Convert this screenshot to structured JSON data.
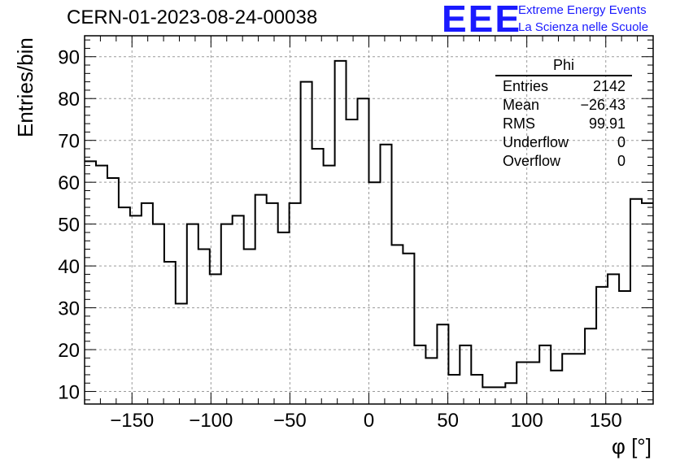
{
  "header": {
    "title": "CERN-01-2023-08-24-00038",
    "logo_text": "EEE",
    "logo_line1": "Extreme Energy Events",
    "logo_line2": "La Scienza nelle Scuole"
  },
  "stats": {
    "name": "Phi",
    "rows": [
      {
        "label": "Entries",
        "value": "2142"
      },
      {
        "label": "Mean",
        "value": "−26.43"
      },
      {
        "label": "RMS",
        "value": "99.91"
      },
      {
        "label": "Underflow",
        "value": "0"
      },
      {
        "label": "Overflow",
        "value": "0"
      }
    ]
  },
  "colors": {
    "logo": "#1a1aff",
    "line": "#000000",
    "grid": "#9a9a9a"
  },
  "chart_data": {
    "type": "histogram",
    "xlabel": "φ [°]",
    "ylabel": "Entries/bin",
    "xlim": [
      -180,
      180
    ],
    "ylim": [
      7,
      95
    ],
    "bin_width": 7.2,
    "values": [
      65,
      64,
      61,
      54,
      52,
      55,
      50,
      41,
      31,
      50,
      44,
      38,
      50,
      52,
      44,
      57,
      55,
      48,
      55,
      84,
      68,
      64,
      89,
      75,
      80,
      60,
      69,
      45,
      43,
      21,
      18,
      26,
      14,
      21,
      14,
      11,
      11,
      12,
      17,
      17,
      21,
      15,
      19,
      19,
      25,
      35,
      38,
      34,
      56,
      55
    ],
    "xticks": [
      -150,
      -100,
      -50,
      0,
      50,
      100,
      150
    ],
    "yticks": [
      10,
      20,
      30,
      40,
      50,
      60,
      70,
      80,
      90
    ],
    "xtick_labels": [
      "−150",
      "−100",
      "−50",
      "0",
      "50",
      "100",
      "150"
    ],
    "ytick_labels": [
      "10",
      "20",
      "30",
      "40",
      "50",
      "60",
      "70",
      "80",
      "90"
    ],
    "grid": true
  }
}
